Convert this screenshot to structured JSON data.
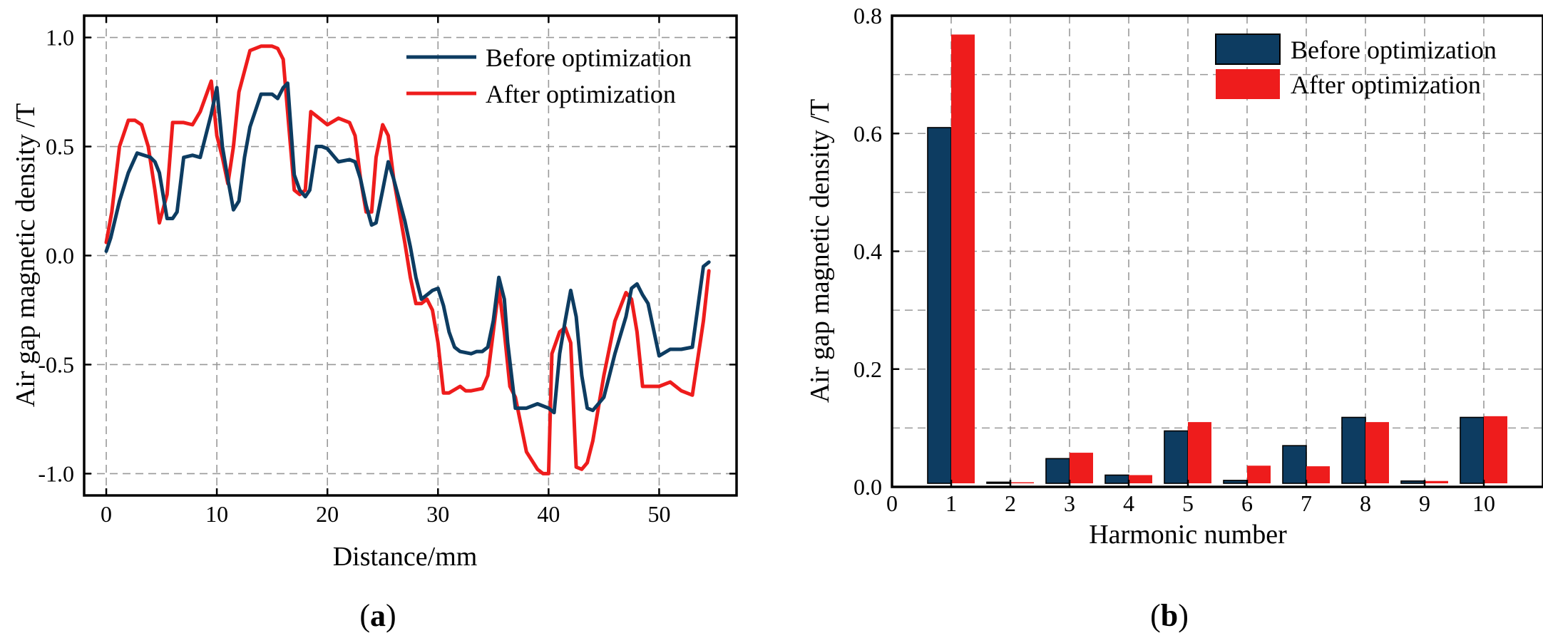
{
  "colors": {
    "before": "#0d3c61",
    "after": "#ee1c1c"
  },
  "chart_data": [
    {
      "type": "line",
      "label": "(a)",
      "panel_letter": "a",
      "xlabel": "Distance/mm",
      "ylabel": "Air gap magnetic density /T",
      "xlim": [
        -2,
        57
      ],
      "ylim": [
        -1.1,
        1.1
      ],
      "xticks": [
        0,
        10,
        20,
        30,
        40,
        50
      ],
      "xtick_labels": [
        "0",
        "10",
        "20",
        "30",
        "40",
        "50"
      ],
      "yticks": [
        -1.0,
        -0.5,
        0.0,
        0.5,
        1.0
      ],
      "ytick_labels": [
        "-1.0",
        "-0.5",
        "0.0",
        "0.5",
        "1.0"
      ],
      "grid": true,
      "legend_position": "top-right",
      "series": [
        {
          "name": "Before optimization",
          "x": [
            0,
            0.4,
            1.2,
            2,
            2.8,
            3.4,
            4,
            4.4,
            4.8,
            5.5,
            6,
            6.4,
            7,
            7.8,
            8.5,
            9.5,
            10,
            10.5,
            11,
            11.5,
            12,
            12.5,
            13,
            14,
            15,
            15.5,
            16,
            16.4,
            17,
            17.5,
            18,
            18.4,
            19,
            19.5,
            20,
            21,
            22,
            22.5,
            23,
            23.5,
            24,
            24.4,
            25,
            25.5,
            26,
            27,
            27.5,
            28,
            28.5,
            29,
            29.5,
            30,
            30.5,
            31,
            31.5,
            32,
            33,
            33.5,
            34,
            34.5,
            35,
            35.5,
            36,
            36.3,
            37,
            38,
            39,
            40,
            40.5,
            41,
            41.5,
            42,
            42.5,
            43,
            43.5,
            44,
            45,
            45.5,
            46,
            47,
            47.5,
            48,
            48.5,
            49,
            50,
            51,
            52,
            53,
            54,
            54.5
          ],
          "y": [
            0.02,
            0.08,
            0.25,
            0.38,
            0.47,
            0.46,
            0.45,
            0.43,
            0.38,
            0.17,
            0.17,
            0.2,
            0.45,
            0.46,
            0.45,
            0.65,
            0.77,
            0.5,
            0.35,
            0.21,
            0.25,
            0.45,
            0.59,
            0.74,
            0.74,
            0.72,
            0.77,
            0.79,
            0.37,
            0.3,
            0.27,
            0.3,
            0.5,
            0.5,
            0.49,
            0.43,
            0.44,
            0.43,
            0.35,
            0.23,
            0.14,
            0.15,
            0.3,
            0.43,
            0.35,
            0.16,
            0.04,
            -0.1,
            -0.2,
            -0.18,
            -0.16,
            -0.15,
            -0.23,
            -0.35,
            -0.42,
            -0.44,
            -0.45,
            -0.44,
            -0.44,
            -0.42,
            -0.3,
            -0.1,
            -0.2,
            -0.4,
            -0.7,
            -0.7,
            -0.68,
            -0.7,
            -0.72,
            -0.45,
            -0.3,
            -0.16,
            -0.28,
            -0.55,
            -0.7,
            -0.71,
            -0.65,
            -0.55,
            -0.45,
            -0.28,
            -0.15,
            -0.13,
            -0.18,
            -0.22,
            -0.46,
            -0.43,
            -0.43,
            -0.42,
            -0.05,
            -0.03
          ]
        },
        {
          "name": "After optimization",
          "x": [
            0,
            0.5,
            1.2,
            2,
            2.6,
            3.2,
            3.8,
            4.4,
            4.8,
            5.5,
            6,
            7,
            7.8,
            8.5,
            9.5,
            10,
            10.5,
            11,
            11.5,
            12,
            13,
            14,
            15,
            15.5,
            16,
            16.5,
            17,
            17.5,
            18,
            18.5,
            19,
            20,
            21,
            22,
            22.5,
            23,
            23.5,
            24,
            24.4,
            25,
            25.5,
            26,
            27,
            27.5,
            28,
            28.5,
            29,
            29.5,
            30,
            30.5,
            31,
            32,
            32.5,
            33,
            34,
            34.5,
            35,
            35.5,
            36,
            36.5,
            37,
            38,
            39,
            39.5,
            40,
            40.3,
            41,
            41.5,
            42,
            42.5,
            43,
            43.5,
            44,
            44.5,
            45,
            46,
            47,
            47.5,
            48,
            48.5,
            49,
            50,
            51,
            52,
            53,
            54,
            54.5
          ],
          "y": [
            0.06,
            0.2,
            0.5,
            0.62,
            0.62,
            0.6,
            0.5,
            0.3,
            0.15,
            0.28,
            0.61,
            0.61,
            0.6,
            0.66,
            0.8,
            0.55,
            0.45,
            0.33,
            0.5,
            0.75,
            0.94,
            0.96,
            0.96,
            0.95,
            0.9,
            0.6,
            0.3,
            0.28,
            0.3,
            0.66,
            0.64,
            0.6,
            0.63,
            0.61,
            0.55,
            0.35,
            0.2,
            0.2,
            0.45,
            0.6,
            0.55,
            0.35,
            0.06,
            -0.1,
            -0.22,
            -0.22,
            -0.2,
            -0.25,
            -0.4,
            -0.63,
            -0.63,
            -0.6,
            -0.62,
            -0.62,
            -0.61,
            -0.55,
            -0.35,
            -0.15,
            -0.35,
            -0.6,
            -0.65,
            -0.9,
            -0.98,
            -1.0,
            -1.0,
            -0.45,
            -0.35,
            -0.33,
            -0.4,
            -0.97,
            -0.98,
            -0.95,
            -0.85,
            -0.7,
            -0.55,
            -0.3,
            -0.17,
            -0.2,
            -0.35,
            -0.6,
            -0.6,
            -0.6,
            -0.58,
            -0.62,
            -0.64,
            -0.3,
            -0.07
          ]
        }
      ]
    },
    {
      "type": "bar",
      "label": "(b)",
      "panel_letter": "b",
      "xlabel": "Harmonic number",
      "ylabel": "Air gap magnetic density /T",
      "xlim": [
        0,
        11
      ],
      "ylim": [
        0,
        0.8
      ],
      "categories": [
        "1",
        "2",
        "3",
        "4",
        "5",
        "6",
        "7",
        "8",
        "9",
        "10"
      ],
      "xtick_labels": [
        "0",
        "1",
        "2",
        "3",
        "4",
        "5",
        "6",
        "7",
        "8",
        "9",
        "10"
      ],
      "yticks": [
        0.0,
        0.2,
        0.4,
        0.6,
        0.8
      ],
      "ytick_labels": [
        "0.0",
        "0.2",
        "0.4",
        "0.6",
        "0.8"
      ],
      "grid": true,
      "legend_position": "top-right",
      "series": [
        {
          "name": "Before optimization",
          "values": [
            0.61,
            0.008,
            0.048,
            0.02,
            0.095,
            0.011,
            0.07,
            0.118,
            0.01,
            0.118
          ]
        },
        {
          "name": "After optimization",
          "values": [
            0.768,
            0.006,
            0.058,
            0.02,
            0.11,
            0.036,
            0.035,
            0.11,
            0.01,
            0.12
          ]
        }
      ]
    }
  ]
}
